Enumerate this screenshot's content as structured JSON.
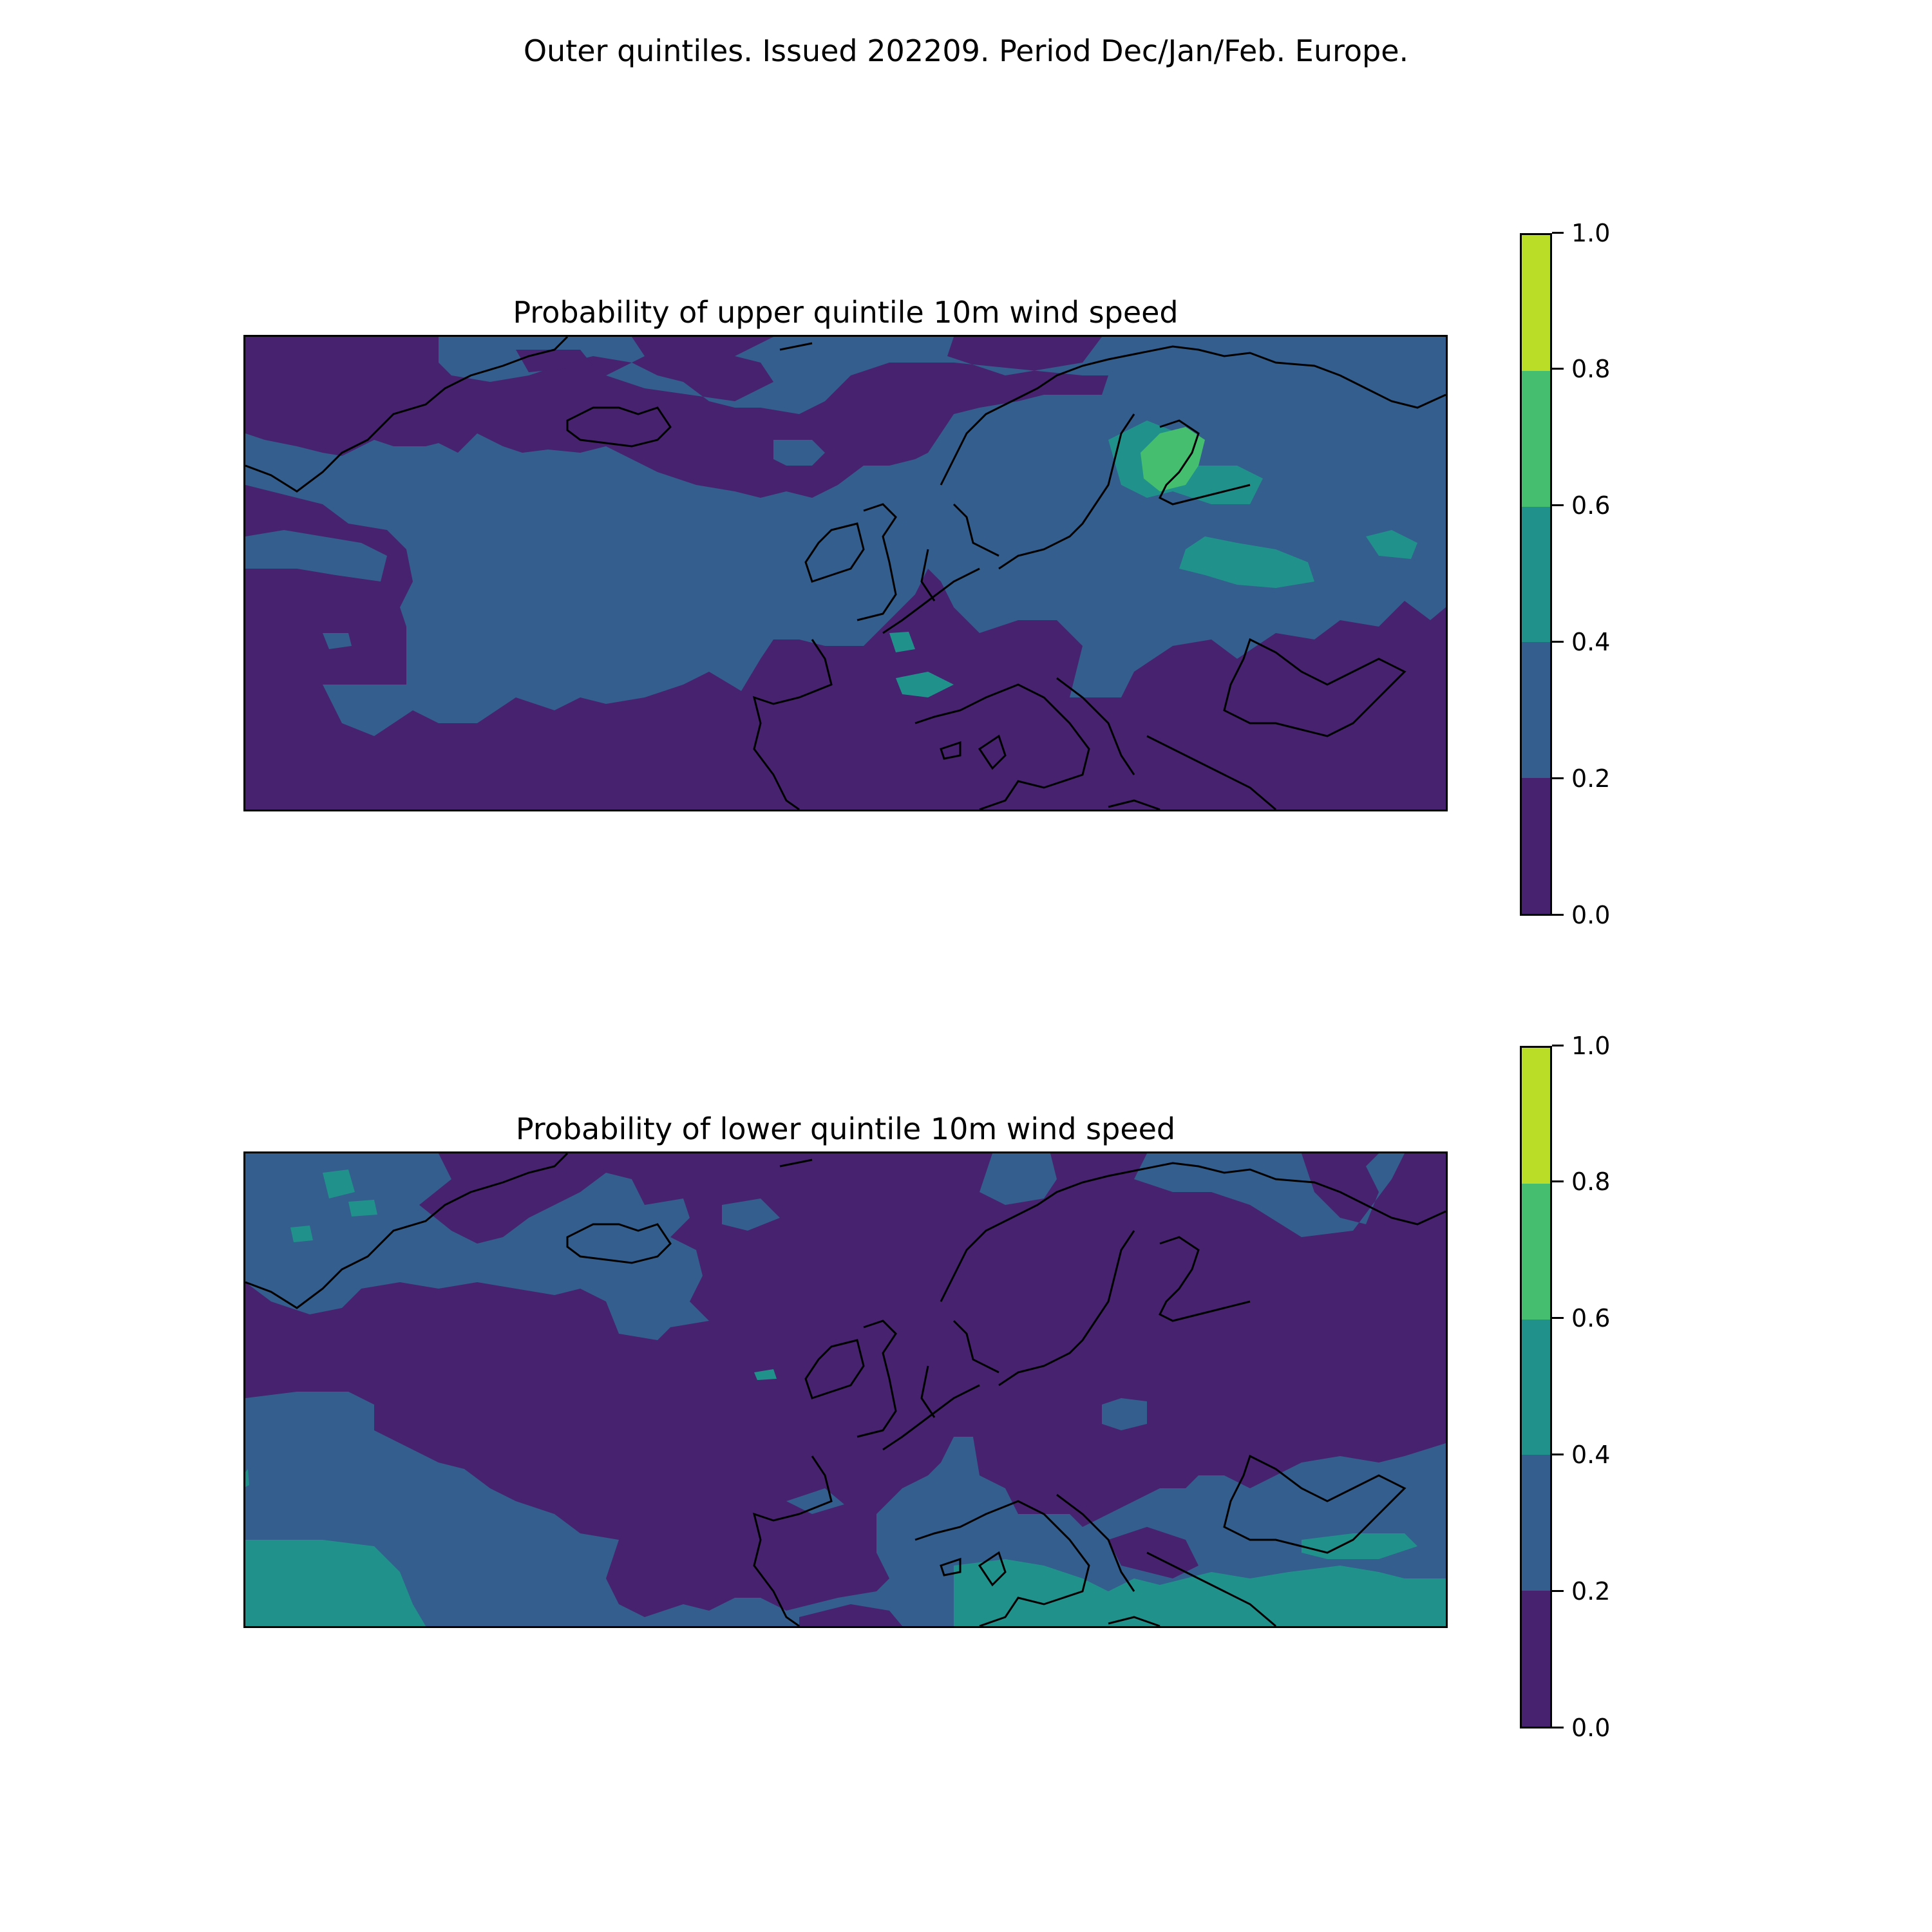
{
  "figure": {
    "title": "Outer quintiles. Issued 202209. Period Dec/Jan/Feb. Europe."
  },
  "palette": {
    "bins": [
      "#46226f",
      "#345e8d",
      "#21918c",
      "#45be6f",
      "#bade28"
    ],
    "coastline": "#000000"
  },
  "panels": [
    {
      "title": "Probability of upper quintile 10m wind speed",
      "colorbar": {
        "ticks": [
          "0.0",
          "0.2",
          "0.4",
          "0.6",
          "0.8",
          "1.0"
        ]
      }
    },
    {
      "title": "Probability of lower quintile 10m wind speed",
      "colorbar": {
        "ticks": [
          "0.0",
          "0.2",
          "0.4",
          "0.6",
          "0.8",
          "1.0"
        ]
      }
    }
  ]
}
